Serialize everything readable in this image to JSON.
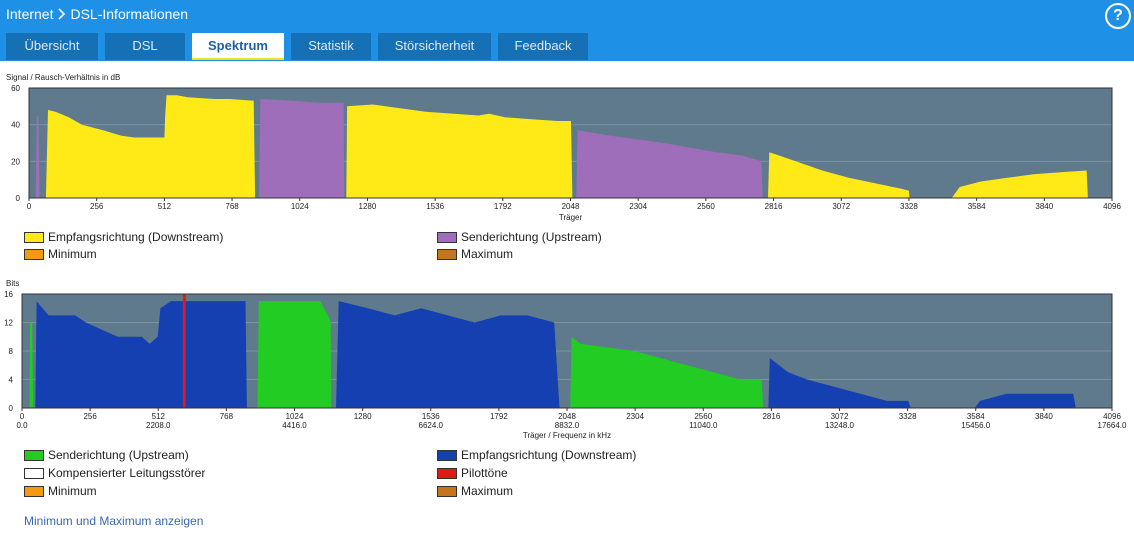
{
  "header": {
    "breadcrumb_root": "Internet",
    "breadcrumb_page": "DSL-Informationen",
    "help_label": "?"
  },
  "tabs": [
    {
      "label": "Übersicht",
      "active": false
    },
    {
      "label": "DSL",
      "active": false
    },
    {
      "label": "Spektrum",
      "active": true
    },
    {
      "label": "Statistik",
      "active": false
    },
    {
      "label": "Störsicherheit",
      "active": false
    },
    {
      "label": "Feedback",
      "active": false
    }
  ],
  "colors": {
    "bar_bg": "#1e90e6",
    "tab_bg": "#1670b6",
    "plot_bg": "#5f7a8d",
    "downstream_snr": "#ffea17",
    "upstream_snr": "#9f6ebb",
    "upstream_bits": "#22cc22",
    "downstream_bits": "#1440b2",
    "pilot": "#e31818",
    "minimum": "#f59a10",
    "maximum": "#c8741a"
  },
  "snr_legend": [
    {
      "label": "Empfangsrichtung (Downstream)",
      "color": "#ffea17"
    },
    {
      "label": "Senderichtung (Upstream)",
      "color": "#9f6ebb"
    },
    {
      "label": "Minimum",
      "color": "#f59a10"
    },
    {
      "label": "Maximum",
      "color": "#c8741a"
    }
  ],
  "bits_legend": [
    {
      "label": "Senderichtung (Upstream)",
      "color": "#22cc22"
    },
    {
      "label": "Empfangsrichtung (Downstream)",
      "color": "#1440b2"
    },
    {
      "label": "Kompensierter Leitungsstörer",
      "color": "#ffffff"
    },
    {
      "label": "Pilottöne",
      "color": "#e31818"
    },
    {
      "label": "Minimum",
      "color": "#f59a10"
    },
    {
      "label": "Maximum",
      "color": "#c8741a"
    }
  ],
  "show_minmax_link": "Minimum und Maximum anzeigen",
  "chart_data": [
    {
      "type": "area",
      "ylabel": "Signal / Rausch-Verhältnis in dB",
      "xlabel": "Träger",
      "xlim": [
        0,
        4096
      ],
      "ylim": [
        0,
        60
      ],
      "yticks": [
        0,
        20,
        40,
        60
      ],
      "xticks": [
        0,
        256,
        512,
        768,
        1024,
        1280,
        1536,
        1792,
        2048,
        2304,
        2560,
        2816,
        3072,
        3328,
        3584,
        3840,
        4096
      ],
      "series": [
        {
          "name": "Empfangsrichtung (Downstream)",
          "color": "#ffea17",
          "segments": [
            [
              [
                64,
                0
              ],
              [
                72,
                48
              ],
              [
                100,
                47
              ],
              [
                150,
                44
              ],
              [
                200,
                40
              ],
              [
                280,
                37
              ],
              [
                350,
                34
              ],
              [
                400,
                33
              ],
              [
                500,
                33
              ],
              [
                512,
                33
              ],
              [
                515,
                45
              ],
              [
                520,
                56
              ],
              [
                560,
                56
              ],
              [
                600,
                55
              ],
              [
                700,
                54
              ],
              [
                760,
                54
              ],
              [
                850,
                53
              ],
              [
                855,
                0
              ]
            ],
            [
              [
                1200,
                0
              ],
              [
                1203,
                50
              ],
              [
                1300,
                51
              ],
              [
                1500,
                47
              ],
              [
                1700,
                45
              ],
              [
                1740,
                46
              ],
              [
                1800,
                44
              ],
              [
                1900,
                43
              ],
              [
                2000,
                42
              ],
              [
                2050,
                42
              ],
              [
                2055,
                0
              ]
            ],
            [
              [
                2795,
                0
              ],
              [
                2800,
                25
              ],
              [
                2900,
                20
              ],
              [
                3000,
                15
              ],
              [
                3100,
                11
              ],
              [
                3200,
                8
              ],
              [
                3300,
                5
              ],
              [
                3328,
                4
              ],
              [
                3330,
                0
              ]
            ],
            [
              [
                3490,
                0
              ],
              [
                3520,
                6
              ],
              [
                3600,
                9
              ],
              [
                3700,
                11
              ],
              [
                3800,
                13
              ],
              [
                3900,
                14
              ],
              [
                4000,
                15
              ],
              [
                4005,
                0
              ]
            ]
          ]
        },
        {
          "name": "Senderichtung (Upstream)",
          "color": "#9f6ebb",
          "segments": [
            [
              [
                25,
                0
              ],
              [
                30,
                44
              ],
              [
                35,
                45
              ],
              [
                40,
                0
              ]
            ],
            [
              [
                870,
                0
              ],
              [
                875,
                54
              ],
              [
                1000,
                53
              ],
              [
                1100,
                52
              ],
              [
                1190,
                52
              ],
              [
                1192,
                0
              ]
            ],
            [
              [
                2070,
                0
              ],
              [
                2075,
                37
              ],
              [
                2200,
                34
              ],
              [
                2400,
                30
              ],
              [
                2600,
                25
              ],
              [
                2700,
                23
              ],
              [
                2770,
                20
              ],
              [
                2775,
                0
              ]
            ]
          ]
        }
      ]
    },
    {
      "type": "area",
      "ylabel": "Bits",
      "xlabel": "Träger / Frequenz in kHz",
      "xlim": [
        0,
        4096
      ],
      "ylim": [
        0,
        16
      ],
      "yticks": [
        0,
        4,
        8,
        12,
        16
      ],
      "xticks": [
        0,
        256,
        512,
        768,
        1024,
        1280,
        1536,
        1792,
        2048,
        2304,
        2560,
        2816,
        3072,
        3328,
        3584,
        3840,
        4096
      ],
      "freq_ticks": [
        {
          "carrier": 0,
          "khz": "0.0"
        },
        {
          "carrier": 512,
          "khz": "2208.0"
        },
        {
          "carrier": 1024,
          "khz": "4416.0"
        },
        {
          "carrier": 1536,
          "khz": "6624.0"
        },
        {
          "carrier": 2048,
          "khz": "8832.0"
        },
        {
          "carrier": 2560,
          "khz": "11040.0"
        },
        {
          "carrier": 3072,
          "khz": "13248.0"
        },
        {
          "carrier": 3584,
          "khz": "15456.0"
        },
        {
          "carrier": 4096,
          "khz": "17664.0"
        }
      ],
      "pilot_carrier": 610,
      "series": [
        {
          "name": "Senderichtung (Upstream)",
          "color": "#22cc22",
          "segments": [
            [
              [
                28,
                0
              ],
              [
                30,
                12
              ],
              [
                38,
                12
              ],
              [
                42,
                0
              ]
            ],
            [
              [
                885,
                0
              ],
              [
                890,
                15
              ],
              [
                1120,
                15
              ],
              [
                1150,
                13
              ],
              [
                1160,
                12
              ],
              [
                1162,
                0
              ]
            ],
            [
              [
                2060,
                0
              ],
              [
                2065,
                10
              ],
              [
                2100,
                9
              ],
              [
                2300,
                8
              ],
              [
                2400,
                7
              ],
              [
                2500,
                6
              ],
              [
                2600,
                5
              ],
              [
                2700,
                4
              ],
              [
                2780,
                4
              ],
              [
                2785,
                0
              ]
            ]
          ]
        },
        {
          "name": "Empfangsrichtung (Downstream)",
          "color": "#1440b2",
          "segments": [
            [
              [
                50,
                0
              ],
              [
                55,
                15
              ],
              [
                100,
                13
              ],
              [
                200,
                13
              ],
              [
                240,
                12
              ],
              [
                300,
                11
              ],
              [
                360,
                10
              ],
              [
                450,
                10
              ],
              [
                480,
                9
              ],
              [
                510,
                10
              ],
              [
                520,
                14
              ],
              [
                560,
                15
              ],
              [
                840,
                15
              ],
              [
                845,
                0
              ]
            ],
            [
              [
                1180,
                0
              ],
              [
                1190,
                15
              ],
              [
                1300,
                14
              ],
              [
                1400,
                13
              ],
              [
                1500,
                14
              ],
              [
                1600,
                13
              ],
              [
                1700,
                12
              ],
              [
                1800,
                13
              ],
              [
                1900,
                13
              ],
              [
                2000,
                12
              ],
              [
                2020,
                0
              ]
            ],
            [
              [
                2805,
                0
              ],
              [
                2810,
                7
              ],
              [
                2880,
                5
              ],
              [
                2950,
                4
              ],
              [
                3050,
                3
              ],
              [
                3150,
                2
              ],
              [
                3250,
                1
              ],
              [
                3330,
                1
              ],
              [
                3340,
                0
              ]
            ],
            [
              [
                3580,
                0
              ],
              [
                3600,
                1
              ],
              [
                3700,
                2
              ],
              [
                3950,
                2
              ],
              [
                3960,
                0
              ]
            ]
          ]
        }
      ]
    }
  ]
}
